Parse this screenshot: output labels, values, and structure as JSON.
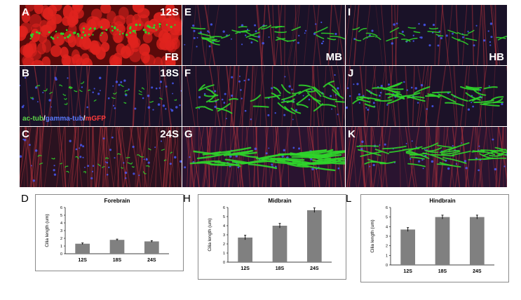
{
  "panels": {
    "A": {
      "letter": "A",
      "stage": "12S",
      "region": "FB",
      "legend": {
        "ac": "ac-tub",
        "gamma": "gamma-tub",
        "mgfp": "mGFP",
        "sep": "/"
      }
    },
    "B": {
      "letter": "B",
      "stage": "18S"
    },
    "C": {
      "letter": "C",
      "stage": "24S"
    },
    "E": {
      "letter": "E",
      "region": "MB"
    },
    "F": {
      "letter": "F"
    },
    "G": {
      "letter": "G"
    },
    "I": {
      "letter": "I",
      "region": "HB"
    },
    "J": {
      "letter": "J"
    },
    "K": {
      "letter": "K"
    }
  },
  "chart_letters": {
    "D": "D",
    "H": "H",
    "L": "L"
  },
  "chart_data": [
    {
      "type": "bar",
      "title": "Forebrain",
      "ylabel": "Cilia length (um)",
      "categories": [
        "12S",
        "18S",
        "24S"
      ],
      "values": [
        1.3,
        1.8,
        1.6
      ],
      "errors": [
        0.1,
        0.1,
        0.1
      ],
      "ylim": [
        0,
        6
      ],
      "yticks": [
        "0",
        "1",
        "2",
        "3",
        "4",
        "5",
        "6"
      ],
      "bar_color": "#808080"
    },
    {
      "type": "bar",
      "title": "Midbrain",
      "ylabel": "Cilia length (um)",
      "categories": [
        "12S",
        "18S",
        "24S"
      ],
      "values": [
        2.7,
        4.0,
        5.7
      ],
      "errors": [
        0.25,
        0.25,
        0.25
      ],
      "ylim": [
        0,
        6
      ],
      "yticks": [
        "0",
        "1",
        "2",
        "3",
        "4",
        "5",
        "6"
      ],
      "bar_color": "#808080"
    },
    {
      "type": "bar",
      "title": "Hindbrain",
      "ylabel": "Cilia length (um)",
      "categories": [
        "12S",
        "18S",
        "24S"
      ],
      "values": [
        3.7,
        5.0,
        5.0
      ],
      "errors": [
        0.2,
        0.2,
        0.2
      ],
      "ylim": [
        0,
        6
      ],
      "yticks": [
        "0",
        "1",
        "2",
        "3",
        "4",
        "5",
        "6"
      ],
      "bar_color": "#808080"
    }
  ],
  "colors": {
    "cilia": "#2fd42a",
    "membrane": "#b8343d",
    "nuclei": "#e0231e",
    "basal": "#4a5cff",
    "background": "#1a0f22"
  }
}
